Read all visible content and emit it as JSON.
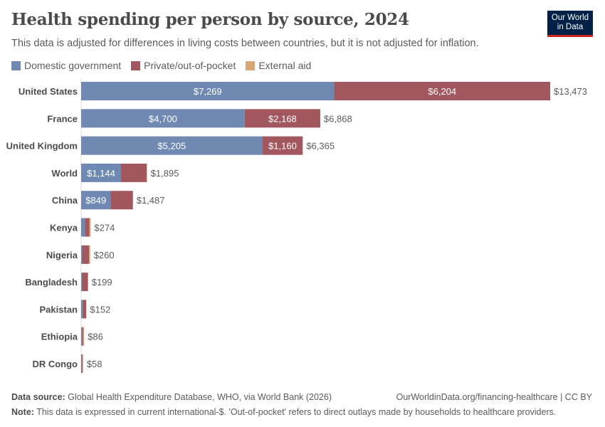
{
  "header": {
    "title": "Health spending per person by source, 2024",
    "subtitle": "This data is adjusted for differences in living costs between countries, but it is not adjusted for inflation.",
    "logo": "Our World in Data"
  },
  "footer": {
    "source_label": "Data source:",
    "source": "Global Health Expenditure Database, WHO, via World Bank (2026)",
    "url": "OurWorldinData.org/financing-healthcare | CC BY",
    "note_label": "Note:",
    "note": "This data is expressed in current international-$. 'Out-of-pocket' refers to direct outlays made by households to healthcare providers."
  },
  "chart_data": {
    "type": "bar",
    "orientation": "horizontal",
    "stacked": true,
    "title": "Health spending per person by source, 2024",
    "legend_position": "top-left",
    "grid": false,
    "categories": [
      "United States",
      "France",
      "United Kingdom",
      "World",
      "China",
      "Kenya",
      "Nigeria",
      "Bangladesh",
      "Pakistan",
      "Ethiopia",
      "DR Congo"
    ],
    "totals": [
      "$13,473",
      "$6,868",
      "$6,365",
      "$1,895",
      "$1,487",
      "$274",
      "$260",
      "$199",
      "$152",
      "$86",
      "$58"
    ],
    "series": [
      {
        "name": "Domestic government",
        "color": "#7089b3",
        "values": [
          7269,
          4700,
          5205,
          1144,
          849,
          110,
          30,
          30,
          50,
          25,
          10
        ]
      },
      {
        "name": "Private/out-of-pocket",
        "color": "#a2575f",
        "values": [
          6204,
          2168,
          1160,
          740,
          638,
          125,
          200,
          165,
          95,
          35,
          28
        ]
      },
      {
        "name": "External aid",
        "color": "#d7a876",
        "values": [
          0,
          0,
          0,
          11,
          0,
          39,
          30,
          4,
          7,
          26,
          20
        ]
      }
    ]
  }
}
